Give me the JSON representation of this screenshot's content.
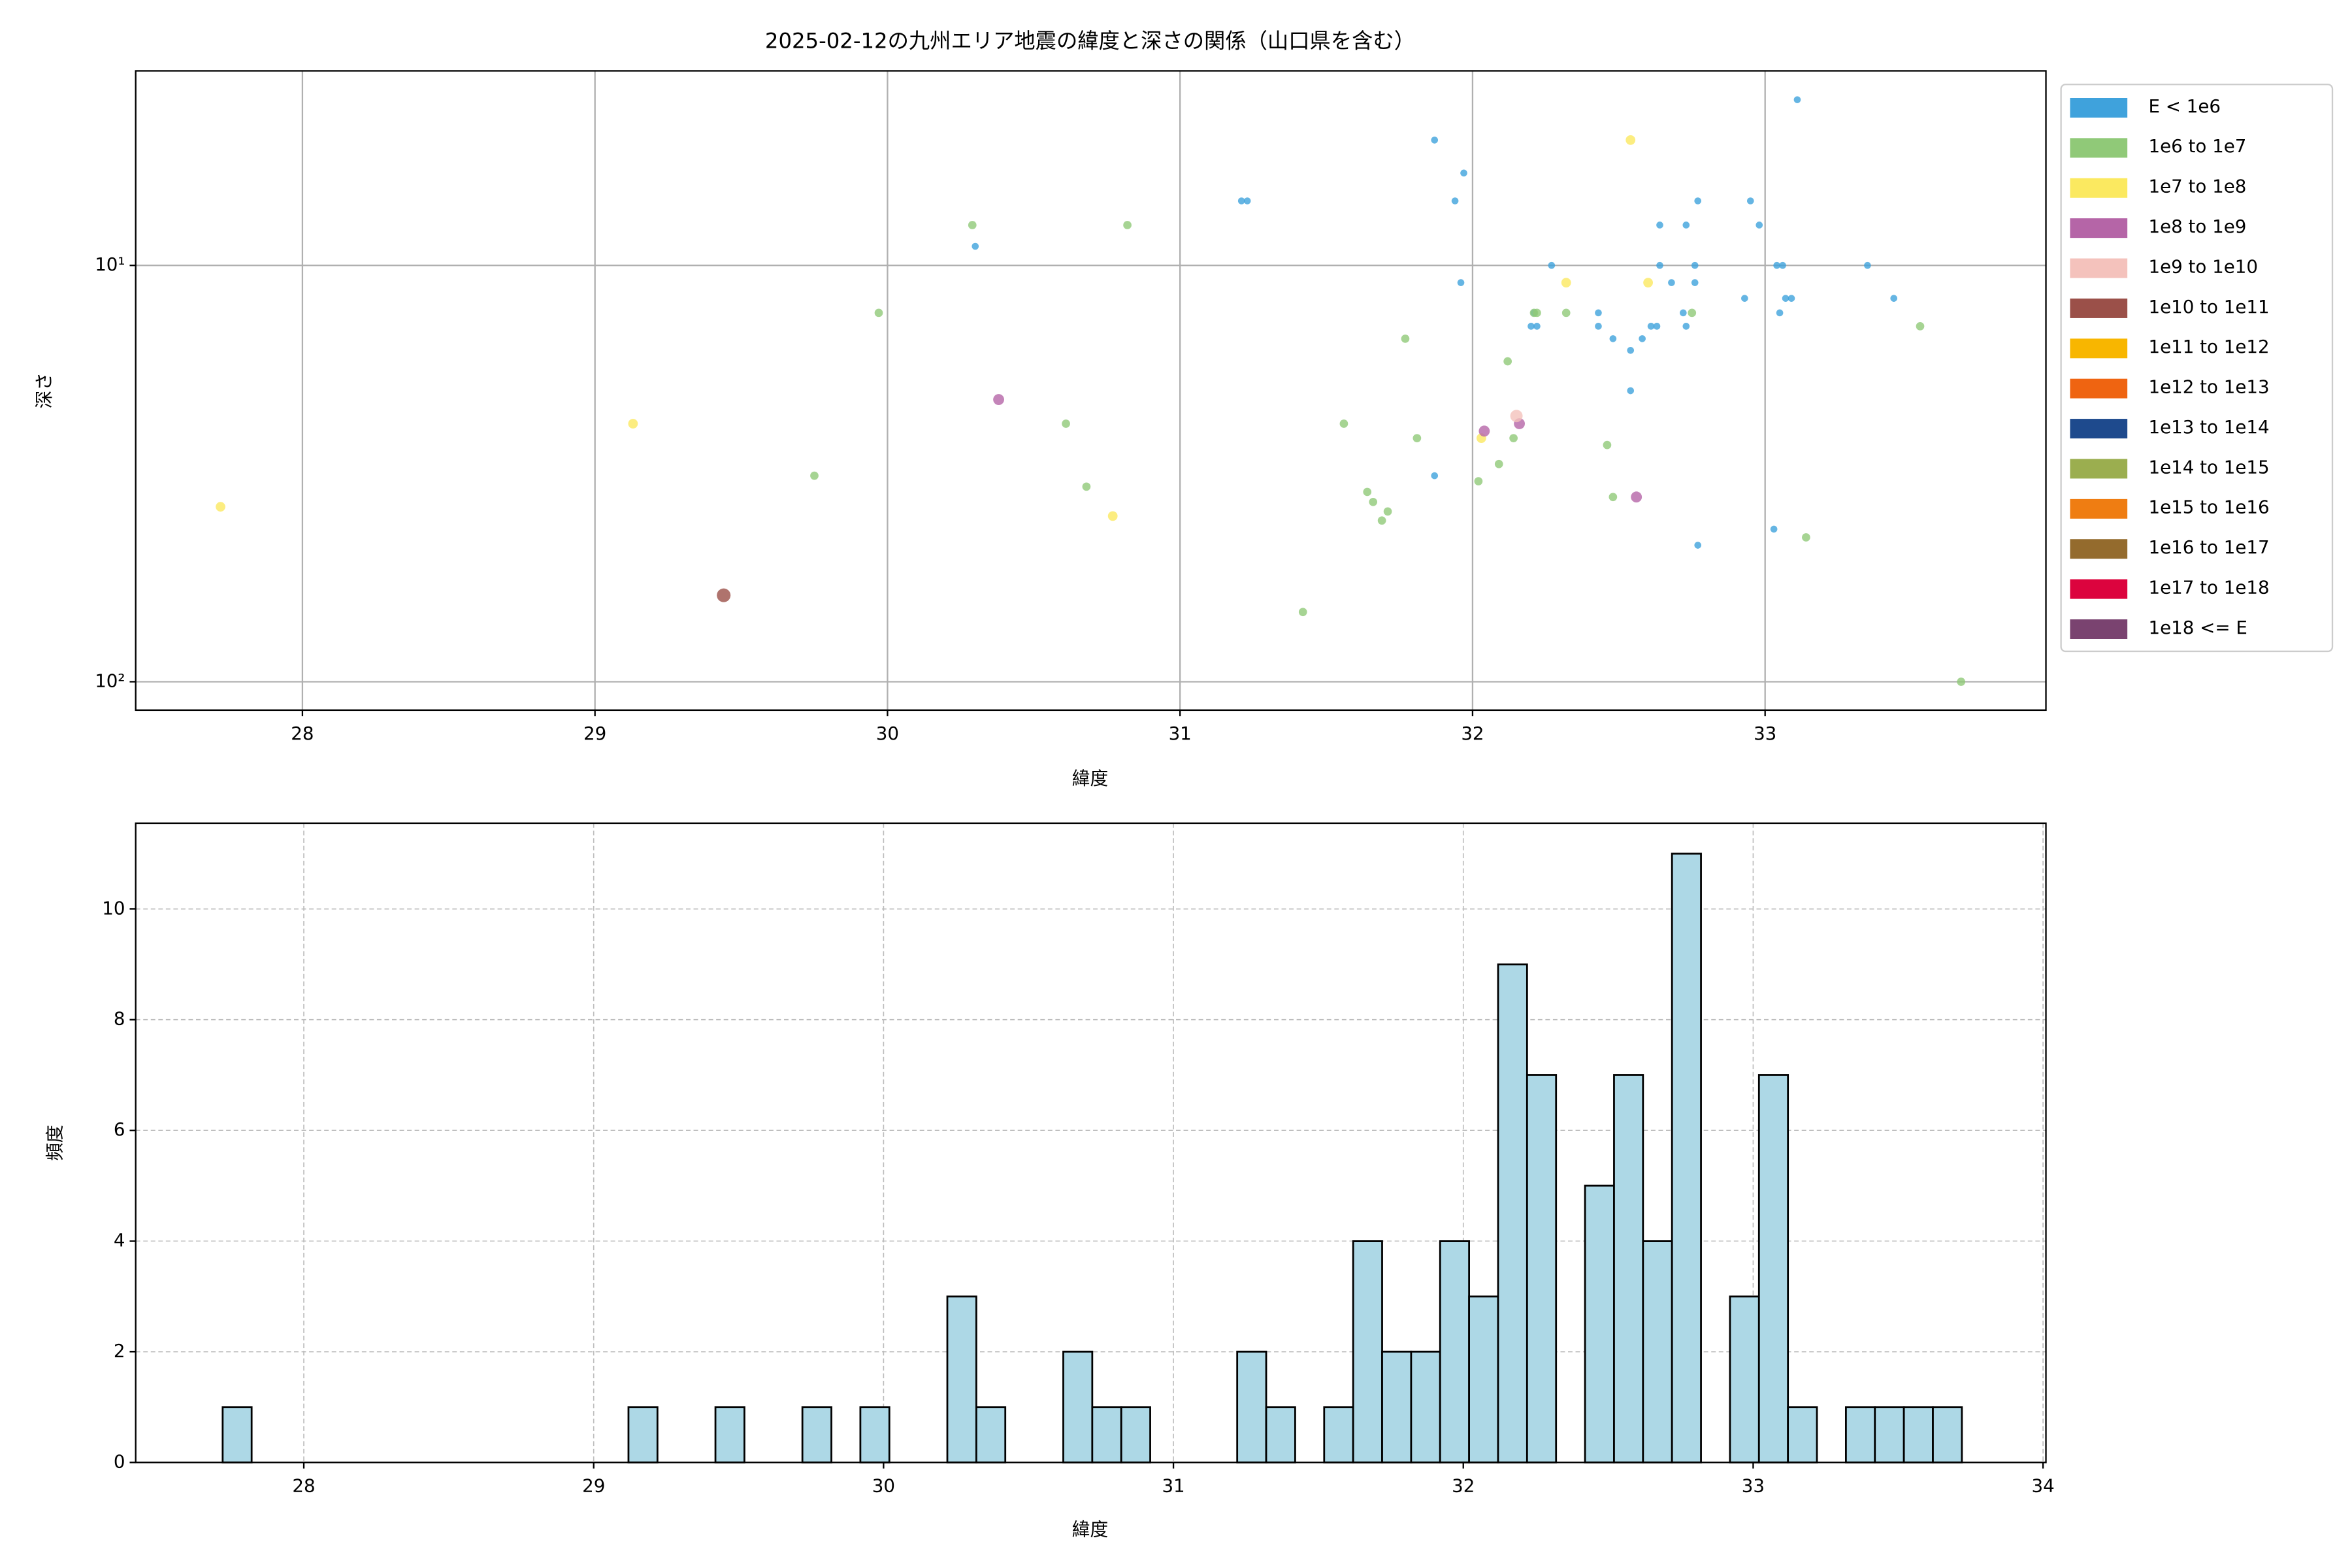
{
  "chart_data": [
    {
      "type": "scatter",
      "title": "2025-02-12の九州エリア地震の緯度と深さの関係（山口県を含む）",
      "xlabel": "緯度",
      "ylabel": "深さ",
      "xlim": [
        27.43,
        33.96
      ],
      "ylim": [
        117,
        3.41
      ],
      "log_y": true,
      "grid": true,
      "grid_style": "solid",
      "legend": "outside-right",
      "xticks": [
        28,
        29,
        30,
        31,
        32,
        33
      ],
      "yticks": [
        {
          "value": 10,
          "label": "10¹"
        },
        {
          "value": 100,
          "label": "10²"
        }
      ],
      "series": [
        {
          "name": "E < 1e6",
          "color": "#3fa2dc",
          "x": [
            30.3,
            31.21,
            31.23,
            31.87,
            31.97,
            31.94,
            31.96,
            31.87,
            32.27,
            32.2,
            32.22,
            32.21,
            32.43,
            32.43,
            32.48,
            32.54,
            32.58,
            32.61,
            32.63,
            32.64,
            32.64,
            32.68,
            32.73,
            32.72,
            32.73,
            32.77,
            32.76,
            32.76,
            32.54,
            32.77,
            32.95,
            32.98,
            32.93,
            33.04,
            33.06,
            33.05,
            33.07,
            33.09,
            33.11,
            33.03,
            33.35,
            33.44
          ],
          "values": [
            9,
            7,
            7,
            5,
            6,
            7,
            11,
            32,
            10,
            14,
            14,
            13,
            13,
            14,
            15,
            16,
            15,
            14,
            14,
            8,
            10,
            11,
            8,
            13,
            14,
            7,
            10,
            11,
            20,
            47,
            7,
            8,
            12,
            10,
            10,
            13,
            12,
            12,
            4,
            43,
            10,
            12
          ]
        },
        {
          "name": "1e6 to 1e7",
          "color": "#90c978",
          "x": [
            30.29,
            30.82,
            29.97,
            29.75,
            30.61,
            30.68,
            31.77,
            31.56,
            31.81,
            31.64,
            31.66,
            31.69,
            31.71,
            31.42,
            32.12,
            32.02,
            32.09,
            32.14,
            32.21,
            32.22,
            32.32,
            32.46,
            32.48,
            32.75,
            33.14,
            33.53,
            33.67
          ],
          "values": [
            8,
            8,
            13,
            32,
            24,
            34,
            15,
            24,
            26,
            35,
            37,
            41,
            39,
            68,
            17,
            33,
            30,
            26,
            13,
            13,
            13,
            27,
            36,
            13,
            45,
            14,
            100
          ]
        },
        {
          "name": "1e7 to 1e8",
          "color": "#fbe960",
          "x": [
            27.72,
            29.13,
            30.77,
            32.54,
            32.32,
            32.6,
            32.03
          ],
          "values": [
            38,
            24,
            40,
            5,
            11,
            11,
            26
          ]
        },
        {
          "name": "1e8 to 1e9",
          "color": "#b565a7",
          "x": [
            30.38,
            32.04,
            32.16,
            32.56
          ],
          "values": [
            21,
            25,
            24,
            36
          ]
        },
        {
          "name": "1e9 to 1e10",
          "color": "#f4c2bc",
          "x": [
            32.15
          ],
          "values": [
            23
          ]
        },
        {
          "name": "1e10 to 1e11",
          "color": "#9b5049",
          "x": [
            29.44
          ],
          "values": [
            62
          ]
        },
        {
          "name": "1e11 to 1e12",
          "color": "#f8b600",
          "x": [],
          "values": []
        },
        {
          "name": "1e12 to 1e13",
          "color": "#ef6411",
          "x": [],
          "values": []
        },
        {
          "name": "1e13 to 1e14",
          "color": "#1e4a8d",
          "x": [],
          "values": []
        },
        {
          "name": "1e14 to 1e15",
          "color": "#9bae4f",
          "x": [],
          "values": []
        },
        {
          "name": "1e15 to 1e16",
          "color": "#ef7d12",
          "x": [],
          "values": []
        },
        {
          "name": "1e16 to 1e17",
          "color": "#946b2d",
          "x": [],
          "values": []
        },
        {
          "name": "1e17 to 1e18",
          "color": "#dc043e",
          "x": [],
          "values": []
        },
        {
          "name": "1e18 <= E",
          "color": "#7a4370",
          "x": [],
          "values": []
        }
      ]
    },
    {
      "type": "histogram",
      "xlabel": "緯度",
      "ylabel": "頻度",
      "color": "#add8e6",
      "edgecolor": "#000000",
      "xlim": [
        27.42,
        34.01
      ],
      "ylim": [
        0,
        11.55
      ],
      "grid": true,
      "grid_style": "dashed",
      "xticks": [
        28,
        29,
        30,
        31,
        32,
        33,
        34
      ],
      "yticks": [
        0,
        2,
        4,
        6,
        8,
        10
      ],
      "bins": [
        27.72,
        27.82,
        27.92,
        28.02,
        28.12,
        28.22,
        28.32,
        28.42,
        28.52,
        28.62,
        28.72,
        28.82,
        28.92,
        29.02,
        29.12,
        29.22,
        29.32,
        29.42,
        29.52,
        29.62,
        29.72,
        29.82,
        29.92,
        30.02,
        30.12,
        30.22,
        30.32,
        30.42,
        30.52,
        30.62,
        30.72,
        30.82,
        30.92,
        31.02,
        31.12,
        31.22,
        31.32,
        31.42,
        31.52,
        31.62,
        31.72,
        31.82,
        31.92,
        32.02,
        32.12,
        32.22,
        32.32,
        32.42,
        32.52,
        32.62,
        32.72,
        32.82,
        32.92,
        33.02,
        33.12,
        33.22,
        33.32,
        33.42,
        33.52,
        33.62,
        33.72
      ],
      "values": [
        1,
        0,
        0,
        0,
        0,
        0,
        0,
        0,
        0,
        0,
        0,
        0,
        0,
        0,
        1,
        0,
        0,
        1,
        0,
        0,
        1,
        0,
        1,
        0,
        0,
        3,
        1,
        0,
        0,
        2,
        1,
        1,
        0,
        0,
        0,
        2,
        1,
        0,
        1,
        4,
        2,
        2,
        4,
        3,
        9,
        7,
        0,
        5,
        7,
        4,
        11,
        0,
        3,
        7,
        1,
        0,
        1,
        1,
        1,
        1
      ]
    }
  ]
}
